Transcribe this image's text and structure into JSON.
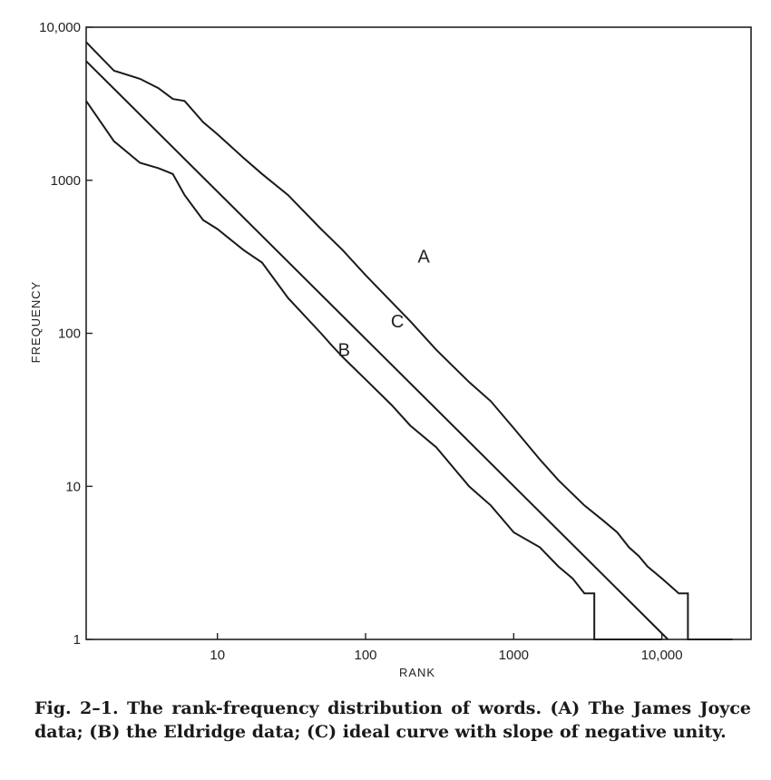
{
  "chart_data": {
    "type": "line",
    "xscale": "log",
    "yscale": "log",
    "xlim": [
      1.3,
      40000
    ],
    "ylim": [
      1,
      10000
    ],
    "xlabel": "RANK",
    "ylabel": "FREQUENCY",
    "x_ticks": [
      {
        "value": 10,
        "label": "10"
      },
      {
        "value": 100,
        "label": "100"
      },
      {
        "value": 1000,
        "label": "1000"
      },
      {
        "value": 10000,
        "label": "10,000"
      }
    ],
    "y_ticks": [
      {
        "value": 1,
        "label": "1"
      },
      {
        "value": 10,
        "label": "10"
      },
      {
        "value": 100,
        "label": "100"
      },
      {
        "value": 1000,
        "label": "1000"
      },
      {
        "value": 10000,
        "label": "10,000"
      }
    ],
    "grid": false,
    "series": [
      {
        "name": "A",
        "label_at": [
          190,
          320
        ],
        "points": [
          [
            1.3,
            8000
          ],
          [
            2,
            5200
          ],
          [
            3,
            4600
          ],
          [
            4,
            4000
          ],
          [
            5,
            3400
          ],
          [
            6,
            3300
          ],
          [
            8,
            2400
          ],
          [
            10,
            2000
          ],
          [
            15,
            1400
          ],
          [
            20,
            1100
          ],
          [
            30,
            800
          ],
          [
            50,
            480
          ],
          [
            70,
            350
          ],
          [
            100,
            240
          ],
          [
            150,
            160
          ],
          [
            200,
            120
          ],
          [
            300,
            78
          ],
          [
            500,
            48
          ],
          [
            700,
            36
          ],
          [
            1000,
            24
          ],
          [
            1500,
            15
          ],
          [
            2000,
            11
          ],
          [
            3000,
            7.5
          ],
          [
            4000,
            6
          ],
          [
            5000,
            5
          ],
          [
            6000,
            4
          ],
          [
            7000,
            3.5
          ],
          [
            8000,
            3
          ],
          [
            10000,
            2.5
          ],
          [
            13000,
            2
          ],
          [
            15000,
            2
          ],
          [
            15000,
            1
          ],
          [
            30000,
            1
          ]
        ]
      },
      {
        "name": "B",
        "label_at": [
          55,
          78
        ],
        "points": [
          [
            1.3,
            3300
          ],
          [
            2,
            1800
          ],
          [
            3,
            1300
          ],
          [
            4,
            1200
          ],
          [
            5,
            1100
          ],
          [
            6,
            800
          ],
          [
            8,
            550
          ],
          [
            10,
            480
          ],
          [
            15,
            350
          ],
          [
            20,
            290
          ],
          [
            30,
            170
          ],
          [
            50,
            100
          ],
          [
            60,
            82
          ],
          [
            70,
            70
          ],
          [
            100,
            50
          ],
          [
            150,
            34
          ],
          [
            200,
            25
          ],
          [
            300,
            18
          ],
          [
            500,
            10
          ],
          [
            700,
            7.5
          ],
          [
            1000,
            5
          ],
          [
            1500,
            4
          ],
          [
            2000,
            3
          ],
          [
            2500,
            2.5
          ],
          [
            3000,
            2
          ],
          [
            3500,
            2
          ],
          [
            3500,
            1
          ],
          [
            10000,
            1
          ]
        ]
      },
      {
        "name": "C",
        "label_at": [
          125,
          120
        ],
        "points": [
          [
            1.3,
            6000
          ],
          [
            11000,
            1
          ]
        ]
      }
    ]
  },
  "caption": "Fig. 2–1. The rank-frequency distribution of words. (A) The James Joyce data; (B) the Eldridge data; (C) ideal curve with slope of negative unity."
}
